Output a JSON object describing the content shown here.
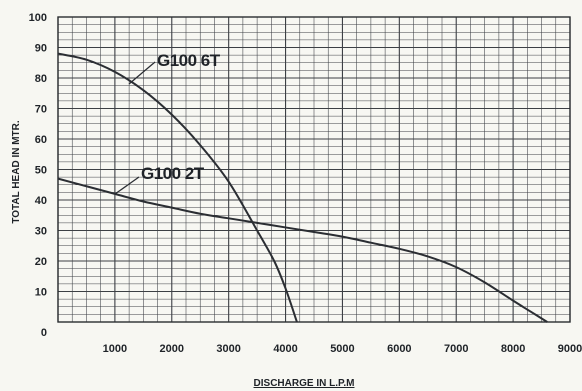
{
  "chart_data": {
    "type": "line",
    "xlabel": "DISCHARGE IN L.P.M",
    "ylabel": "TOTAL HEAD IN MTR.",
    "xlim": [
      0,
      9000
    ],
    "ylim": [
      0,
      100
    ],
    "x_ticks": [
      1000,
      2000,
      3000,
      4000,
      5000,
      6000,
      7000,
      8000,
      9000
    ],
    "y_ticks": [
      0,
      10,
      20,
      30,
      40,
      50,
      60,
      70,
      80,
      90,
      100
    ],
    "grid": true,
    "series": [
      {
        "name": "G100 6T",
        "x": [
          0,
          500,
          1000,
          1500,
          2000,
          2500,
          3000,
          3500,
          3800,
          4000,
          4200
        ],
        "y": [
          88,
          86,
          82,
          76,
          68,
          58,
          46,
          30,
          20,
          11,
          0
        ]
      },
      {
        "name": "G100 2T",
        "x": [
          0,
          500,
          1000,
          1500,
          2000,
          2500,
          3000,
          3500,
          4000,
          4500,
          5000,
          5500,
          6000,
          6500,
          7000,
          7500,
          8000,
          8300,
          8600
        ],
        "y": [
          47,
          44.5,
          42,
          39.5,
          37.5,
          35.5,
          34,
          32.5,
          31,
          29.5,
          28,
          26,
          24,
          21.5,
          18,
          13,
          7,
          3.5,
          0
        ]
      }
    ]
  }
}
